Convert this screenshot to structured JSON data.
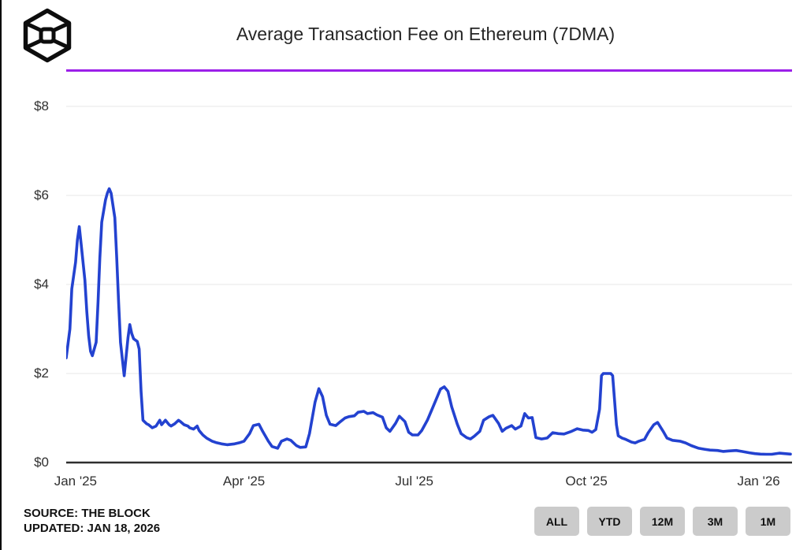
{
  "header": {
    "brand": "The Block",
    "title": "Average Transaction Fee on Ethereum (7DMA)"
  },
  "colors": {
    "line": "#2342d0",
    "divider_accent": "#9b1fe9",
    "grid": "#e7e7e7",
    "axis": "#2e2e2e",
    "button_bg": "#cbcbcb",
    "logo": "#0d0d0d"
  },
  "footer": {
    "source_label": "SOURCE: THE BLOCK",
    "updated_label": "UPDATED: JAN 18, 2026"
  },
  "range_buttons": [
    {
      "label": "ALL"
    },
    {
      "label": "YTD"
    },
    {
      "label": "12M"
    },
    {
      "label": "3M"
    },
    {
      "label": "1M"
    }
  ],
  "chart_data": {
    "type": "line",
    "title": "Average Transaction Fee on Ethereum (7DMA)",
    "xlabel": "",
    "ylabel": "USD",
    "ylim": [
      0,
      8.45
    ],
    "grid": true,
    "legend_position": "none",
    "y_ticks": [
      {
        "label": "$0",
        "value": 0
      },
      {
        "label": "$2",
        "value": 2
      },
      {
        "label": "$4",
        "value": 4
      },
      {
        "label": "$6",
        "value": 6
      },
      {
        "label": "$8",
        "value": 8
      }
    ],
    "x_ticks": [
      {
        "label": "Jan '25",
        "date": "2025-01-01"
      },
      {
        "label": "Apr '25",
        "date": "2025-04-01"
      },
      {
        "label": "Jul '25",
        "date": "2025-07-01"
      },
      {
        "label": "Oct '25",
        "date": "2025-10-01"
      },
      {
        "label": "Jan '26",
        "date": "2026-01-01"
      }
    ],
    "series": [
      {
        "name": "Average Transaction Fee on Ethereum (7DMA)",
        "unit": "$",
        "color": "#2342d0",
        "points": [
          [
            "2024-12-27",
            2.35
          ],
          [
            "2024-12-29",
            3.0
          ],
          [
            "2024-12-30",
            3.9
          ],
          [
            "2025-01-01",
            4.5
          ],
          [
            "2025-01-02",
            5.0
          ],
          [
            "2025-01-03",
            5.3
          ],
          [
            "2025-01-04",
            4.9
          ],
          [
            "2025-01-06",
            4.1
          ],
          [
            "2025-01-07",
            3.4
          ],
          [
            "2025-01-08",
            2.85
          ],
          [
            "2025-01-09",
            2.5
          ],
          [
            "2025-01-10",
            2.4
          ],
          [
            "2025-01-12",
            2.7
          ],
          [
            "2025-01-13",
            3.6
          ],
          [
            "2025-01-14",
            4.6
          ],
          [
            "2025-01-15",
            5.4
          ],
          [
            "2025-01-17",
            5.9
          ],
          [
            "2025-01-18",
            6.05
          ],
          [
            "2025-01-19",
            6.15
          ],
          [
            "2025-01-20",
            6.05
          ],
          [
            "2025-01-22",
            5.5
          ],
          [
            "2025-01-23",
            4.6
          ],
          [
            "2025-01-24",
            3.6
          ],
          [
            "2025-01-25",
            2.7
          ],
          [
            "2025-01-27",
            1.95
          ],
          [
            "2025-01-29",
            2.8
          ],
          [
            "2025-01-30",
            3.1
          ],
          [
            "2025-01-31",
            2.9
          ],
          [
            "2025-02-01",
            2.78
          ],
          [
            "2025-02-03",
            2.72
          ],
          [
            "2025-02-04",
            2.55
          ],
          [
            "2025-02-05",
            1.6
          ],
          [
            "2025-02-06",
            0.95
          ],
          [
            "2025-02-08",
            0.87
          ],
          [
            "2025-02-09",
            0.85
          ],
          [
            "2025-02-11",
            0.78
          ],
          [
            "2025-02-13",
            0.82
          ],
          [
            "2025-02-15",
            0.95
          ],
          [
            "2025-02-16",
            0.85
          ],
          [
            "2025-02-18",
            0.95
          ],
          [
            "2025-02-20",
            0.85
          ],
          [
            "2025-02-21",
            0.82
          ],
          [
            "2025-02-23",
            0.87
          ],
          [
            "2025-02-25",
            0.95
          ],
          [
            "2025-02-26",
            0.92
          ],
          [
            "2025-02-28",
            0.85
          ],
          [
            "2025-03-02",
            0.82
          ],
          [
            "2025-03-03",
            0.78
          ],
          [
            "2025-03-05",
            0.75
          ],
          [
            "2025-03-07",
            0.82
          ],
          [
            "2025-03-08",
            0.72
          ],
          [
            "2025-03-10",
            0.62
          ],
          [
            "2025-03-12",
            0.55
          ],
          [
            "2025-03-15",
            0.48
          ],
          [
            "2025-03-17",
            0.45
          ],
          [
            "2025-03-20",
            0.42
          ],
          [
            "2025-03-23",
            0.4
          ],
          [
            "2025-03-27",
            0.42
          ],
          [
            "2025-03-30",
            0.45
          ],
          [
            "2025-04-01",
            0.48
          ],
          [
            "2025-04-04",
            0.65
          ],
          [
            "2025-04-06",
            0.83
          ],
          [
            "2025-04-09",
            0.86
          ],
          [
            "2025-04-11",
            0.7
          ],
          [
            "2025-04-14",
            0.48
          ],
          [
            "2025-04-16",
            0.36
          ],
          [
            "2025-04-19",
            0.32
          ],
          [
            "2025-04-21",
            0.48
          ],
          [
            "2025-04-24",
            0.53
          ],
          [
            "2025-04-26",
            0.5
          ],
          [
            "2025-04-29",
            0.38
          ],
          [
            "2025-05-01",
            0.34
          ],
          [
            "2025-05-04",
            0.35
          ],
          [
            "2025-05-06",
            0.65
          ],
          [
            "2025-05-09",
            1.36
          ],
          [
            "2025-05-11",
            1.66
          ],
          [
            "2025-05-13",
            1.48
          ],
          [
            "2025-05-15",
            1.06
          ],
          [
            "2025-05-17",
            0.86
          ],
          [
            "2025-05-20",
            0.83
          ],
          [
            "2025-05-22",
            0.9
          ],
          [
            "2025-05-25",
            1.0
          ],
          [
            "2025-05-27",
            1.03
          ],
          [
            "2025-05-30",
            1.05
          ],
          [
            "2025-06-01",
            1.13
          ],
          [
            "2025-06-04",
            1.15
          ],
          [
            "2025-06-06",
            1.1
          ],
          [
            "2025-06-09",
            1.12
          ],
          [
            "2025-06-11",
            1.07
          ],
          [
            "2025-06-14",
            1.02
          ],
          [
            "2025-06-16",
            0.78
          ],
          [
            "2025-06-18",
            0.7
          ],
          [
            "2025-06-21",
            0.88
          ],
          [
            "2025-06-23",
            1.04
          ],
          [
            "2025-06-26",
            0.92
          ],
          [
            "2025-06-28",
            0.68
          ],
          [
            "2025-06-30",
            0.62
          ],
          [
            "2025-07-03",
            0.62
          ],
          [
            "2025-07-05",
            0.72
          ],
          [
            "2025-07-08",
            0.95
          ],
          [
            "2025-07-10",
            1.15
          ],
          [
            "2025-07-13",
            1.45
          ],
          [
            "2025-07-15",
            1.65
          ],
          [
            "2025-07-17",
            1.7
          ],
          [
            "2025-07-19",
            1.6
          ],
          [
            "2025-07-21",
            1.25
          ],
          [
            "2025-07-24",
            0.86
          ],
          [
            "2025-07-26",
            0.65
          ],
          [
            "2025-07-29",
            0.56
          ],
          [
            "2025-07-31",
            0.53
          ],
          [
            "2025-08-02",
            0.59
          ],
          [
            "2025-08-05",
            0.7
          ],
          [
            "2025-08-07",
            0.95
          ],
          [
            "2025-08-10",
            1.03
          ],
          [
            "2025-08-12",
            1.06
          ],
          [
            "2025-08-15",
            0.88
          ],
          [
            "2025-08-17",
            0.7
          ],
          [
            "2025-08-19",
            0.77
          ],
          [
            "2025-08-22",
            0.83
          ],
          [
            "2025-08-24",
            0.75
          ],
          [
            "2025-08-27",
            0.82
          ],
          [
            "2025-08-29",
            1.1
          ],
          [
            "2025-08-31",
            1.0
          ],
          [
            "2025-09-02",
            1.01
          ],
          [
            "2025-09-04",
            0.56
          ],
          [
            "2025-09-07",
            0.53
          ],
          [
            "2025-09-10",
            0.55
          ],
          [
            "2025-09-13",
            0.67
          ],
          [
            "2025-09-16",
            0.65
          ],
          [
            "2025-09-19",
            0.64
          ],
          [
            "2025-09-23",
            0.7
          ],
          [
            "2025-09-26",
            0.76
          ],
          [
            "2025-09-29",
            0.73
          ],
          [
            "2025-10-02",
            0.72
          ],
          [
            "2025-10-04",
            0.68
          ],
          [
            "2025-10-06",
            0.74
          ],
          [
            "2025-10-08",
            1.2
          ],
          [
            "2025-10-09",
            1.95
          ],
          [
            "2025-10-10",
            2.0
          ],
          [
            "2025-10-14",
            2.0
          ],
          [
            "2025-10-15",
            1.95
          ],
          [
            "2025-10-16",
            1.4
          ],
          [
            "2025-10-17",
            0.85
          ],
          [
            "2025-10-18",
            0.6
          ],
          [
            "2025-10-20",
            0.55
          ],
          [
            "2025-10-22",
            0.52
          ],
          [
            "2025-10-25",
            0.46
          ],
          [
            "2025-10-27",
            0.44
          ],
          [
            "2025-10-29",
            0.48
          ],
          [
            "2025-11-01",
            0.52
          ],
          [
            "2025-11-03",
            0.67
          ],
          [
            "2025-11-06",
            0.85
          ],
          [
            "2025-11-08",
            0.9
          ],
          [
            "2025-11-11",
            0.7
          ],
          [
            "2025-11-13",
            0.55
          ],
          [
            "2025-11-16",
            0.5
          ],
          [
            "2025-11-20",
            0.48
          ],
          [
            "2025-11-23",
            0.44
          ],
          [
            "2025-11-26",
            0.38
          ],
          [
            "2025-11-30",
            0.32
          ],
          [
            "2025-12-03",
            0.3
          ],
          [
            "2025-12-06",
            0.28
          ],
          [
            "2025-12-10",
            0.27
          ],
          [
            "2025-12-13",
            0.25
          ],
          [
            "2025-12-16",
            0.26
          ],
          [
            "2025-12-20",
            0.27
          ],
          [
            "2025-12-23",
            0.25
          ],
          [
            "2025-12-27",
            0.22
          ],
          [
            "2025-12-30",
            0.2
          ],
          [
            "2026-01-02",
            0.19
          ],
          [
            "2026-01-05",
            0.185
          ],
          [
            "2026-01-08",
            0.185
          ],
          [
            "2026-01-12",
            0.21
          ],
          [
            "2026-01-15",
            0.2
          ],
          [
            "2026-01-18",
            0.19
          ]
        ]
      }
    ]
  }
}
